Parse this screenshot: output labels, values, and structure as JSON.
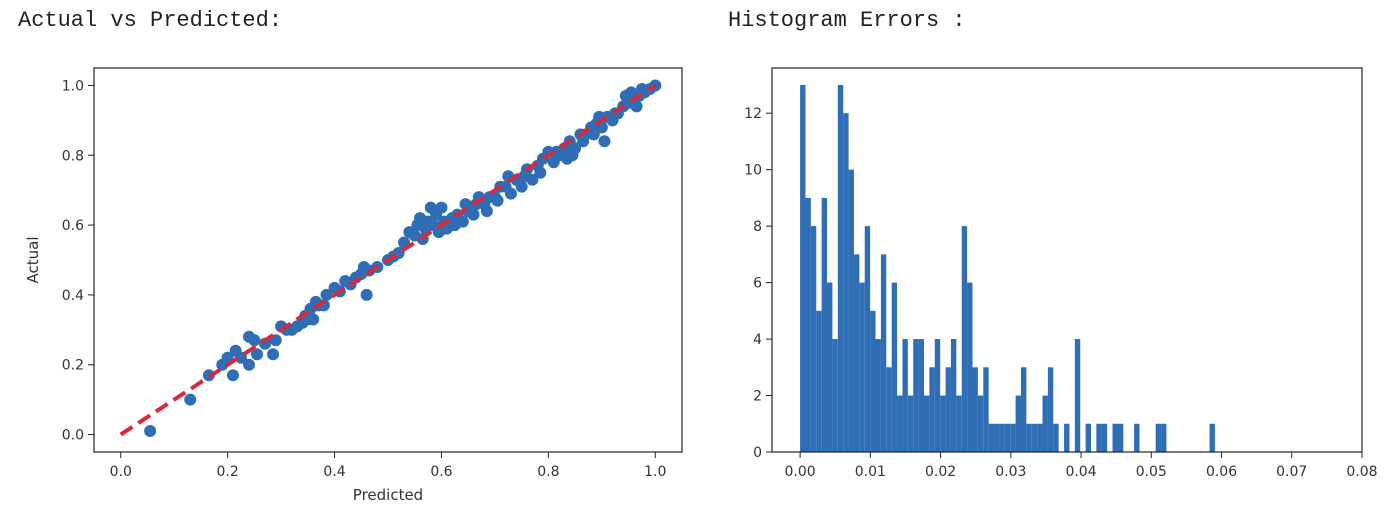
{
  "titles": {
    "left": "Actual vs Predicted:",
    "right": "Histogram Errors :"
  },
  "colors": {
    "points": "#2f6db5",
    "fit_line": "#d62a3c",
    "bars": "#2f6db5",
    "axes": "#222222"
  },
  "chart_data": [
    {
      "type": "scatter",
      "title": "",
      "xlabel": "Predicted",
      "ylabel": "Actual",
      "xlim": [
        -0.05,
        1.05
      ],
      "ylim": [
        -0.05,
        1.05
      ],
      "xticks": [
        "0.0",
        "0.2",
        "0.4",
        "0.6",
        "0.8",
        "1.0"
      ],
      "yticks": [
        "0.0",
        "0.2",
        "0.4",
        "0.6",
        "0.8",
        "1.0"
      ],
      "reference_line": {
        "x": [
          0.0,
          1.0
        ],
        "y": [
          0.0,
          1.0
        ],
        "style": "dashed"
      },
      "points": [
        [
          0.055,
          0.01
        ],
        [
          0.13,
          0.1
        ],
        [
          0.165,
          0.17
        ],
        [
          0.19,
          0.2
        ],
        [
          0.2,
          0.22
        ],
        [
          0.21,
          0.17
        ],
        [
          0.215,
          0.24
        ],
        [
          0.225,
          0.22
        ],
        [
          0.24,
          0.2
        ],
        [
          0.24,
          0.28
        ],
        [
          0.25,
          0.27
        ],
        [
          0.255,
          0.23
        ],
        [
          0.27,
          0.26
        ],
        [
          0.285,
          0.23
        ],
        [
          0.29,
          0.27
        ],
        [
          0.3,
          0.31
        ],
        [
          0.31,
          0.3
        ],
        [
          0.32,
          0.3
        ],
        [
          0.33,
          0.31
        ],
        [
          0.34,
          0.32
        ],
        [
          0.345,
          0.34
        ],
        [
          0.35,
          0.33
        ],
        [
          0.355,
          0.36
        ],
        [
          0.36,
          0.33
        ],
        [
          0.365,
          0.38
        ],
        [
          0.37,
          0.37
        ],
        [
          0.38,
          0.37
        ],
        [
          0.385,
          0.4
        ],
        [
          0.4,
          0.42
        ],
        [
          0.41,
          0.41
        ],
        [
          0.42,
          0.44
        ],
        [
          0.43,
          0.43
        ],
        [
          0.44,
          0.45
        ],
        [
          0.45,
          0.46
        ],
        [
          0.455,
          0.48
        ],
        [
          0.46,
          0.4
        ],
        [
          0.465,
          0.47
        ],
        [
          0.48,
          0.48
        ],
        [
          0.5,
          0.5
        ],
        [
          0.51,
          0.51
        ],
        [
          0.52,
          0.52
        ],
        [
          0.53,
          0.55
        ],
        [
          0.54,
          0.58
        ],
        [
          0.55,
          0.57
        ],
        [
          0.555,
          0.6
        ],
        [
          0.56,
          0.62
        ],
        [
          0.565,
          0.56
        ],
        [
          0.57,
          0.59
        ],
        [
          0.575,
          0.61
        ],
        [
          0.58,
          0.65
        ],
        [
          0.585,
          0.6
        ],
        [
          0.59,
          0.63
        ],
        [
          0.595,
          0.58
        ],
        [
          0.6,
          0.65
        ],
        [
          0.605,
          0.61
        ],
        [
          0.61,
          0.59
        ],
        [
          0.62,
          0.62
        ],
        [
          0.625,
          0.6
        ],
        [
          0.63,
          0.63
        ],
        [
          0.64,
          0.61
        ],
        [
          0.645,
          0.66
        ],
        [
          0.65,
          0.64
        ],
        [
          0.66,
          0.63
        ],
        [
          0.665,
          0.66
        ],
        [
          0.67,
          0.68
        ],
        [
          0.68,
          0.66
        ],
        [
          0.685,
          0.64
        ],
        [
          0.69,
          0.68
        ],
        [
          0.7,
          0.68
        ],
        [
          0.705,
          0.67
        ],
        [
          0.71,
          0.71
        ],
        [
          0.72,
          0.71
        ],
        [
          0.725,
          0.74
        ],
        [
          0.73,
          0.69
        ],
        [
          0.74,
          0.73
        ],
        [
          0.75,
          0.71
        ],
        [
          0.755,
          0.74
        ],
        [
          0.76,
          0.76
        ],
        [
          0.77,
          0.73
        ],
        [
          0.78,
          0.77
        ],
        [
          0.785,
          0.75
        ],
        [
          0.79,
          0.79
        ],
        [
          0.8,
          0.81
        ],
        [
          0.81,
          0.78
        ],
        [
          0.815,
          0.81
        ],
        [
          0.82,
          0.8
        ],
        [
          0.83,
          0.82
        ],
        [
          0.835,
          0.79
        ],
        [
          0.84,
          0.84
        ],
        [
          0.845,
          0.8
        ],
        [
          0.85,
          0.82
        ],
        [
          0.86,
          0.86
        ],
        [
          0.865,
          0.84
        ],
        [
          0.87,
          0.86
        ],
        [
          0.88,
          0.88
        ],
        [
          0.885,
          0.86
        ],
        [
          0.89,
          0.89
        ],
        [
          0.895,
          0.91
        ],
        [
          0.9,
          0.88
        ],
        [
          0.905,
          0.84
        ],
        [
          0.91,
          0.91
        ],
        [
          0.92,
          0.9
        ],
        [
          0.925,
          0.92
        ],
        [
          0.93,
          0.92
        ],
        [
          0.94,
          0.94
        ],
        [
          0.945,
          0.97
        ],
        [
          0.95,
          0.95
        ],
        [
          0.955,
          0.98
        ],
        [
          0.96,
          0.96
        ],
        [
          0.965,
          0.94
        ],
        [
          0.97,
          0.97
        ],
        [
          0.975,
          0.99
        ],
        [
          0.98,
          0.98
        ],
        [
          0.99,
          0.99
        ],
        [
          1.0,
          1.0
        ]
      ]
    },
    {
      "type": "bar",
      "subtype": "histogram",
      "title": "",
      "xlabel": "",
      "ylabel": "",
      "xlim": [
        -0.004,
        0.08
      ],
      "ylim": [
        0,
        13.6
      ],
      "xticks": [
        "0.00",
        "0.01",
        "0.02",
        "0.03",
        "0.04",
        "0.05",
        "0.06",
        "0.07",
        "0.08"
      ],
      "yticks": [
        "0",
        "2",
        "4",
        "6",
        "8",
        "10",
        "12"
      ],
      "bin_start": 0.0,
      "bin_width": 0.000767,
      "counts": [
        13,
        9,
        8,
        5,
        9,
        6,
        4,
        13,
        12,
        10,
        7,
        6,
        8,
        5,
        4,
        7,
        3,
        6,
        2,
        4,
        2,
        4,
        4,
        2,
        3,
        4,
        2,
        3,
        4,
        2,
        8,
        6,
        3,
        2,
        3,
        1,
        1,
        1,
        1,
        1,
        2,
        3,
        1,
        1,
        1,
        2,
        3,
        1,
        0,
        1,
        0,
        4,
        0,
        1,
        0,
        1,
        1,
        0,
        1,
        1,
        0,
        0,
        1,
        0,
        0,
        0,
        1,
        1,
        0,
        0,
        0,
        0,
        0,
        0,
        0,
        0,
        1,
        0,
        0,
        0,
        0,
        0,
        0,
        0,
        0,
        0,
        0,
        0,
        0,
        0,
        0,
        0,
        0,
        0,
        0,
        0,
        0,
        0,
        0,
        0
      ]
    }
  ]
}
